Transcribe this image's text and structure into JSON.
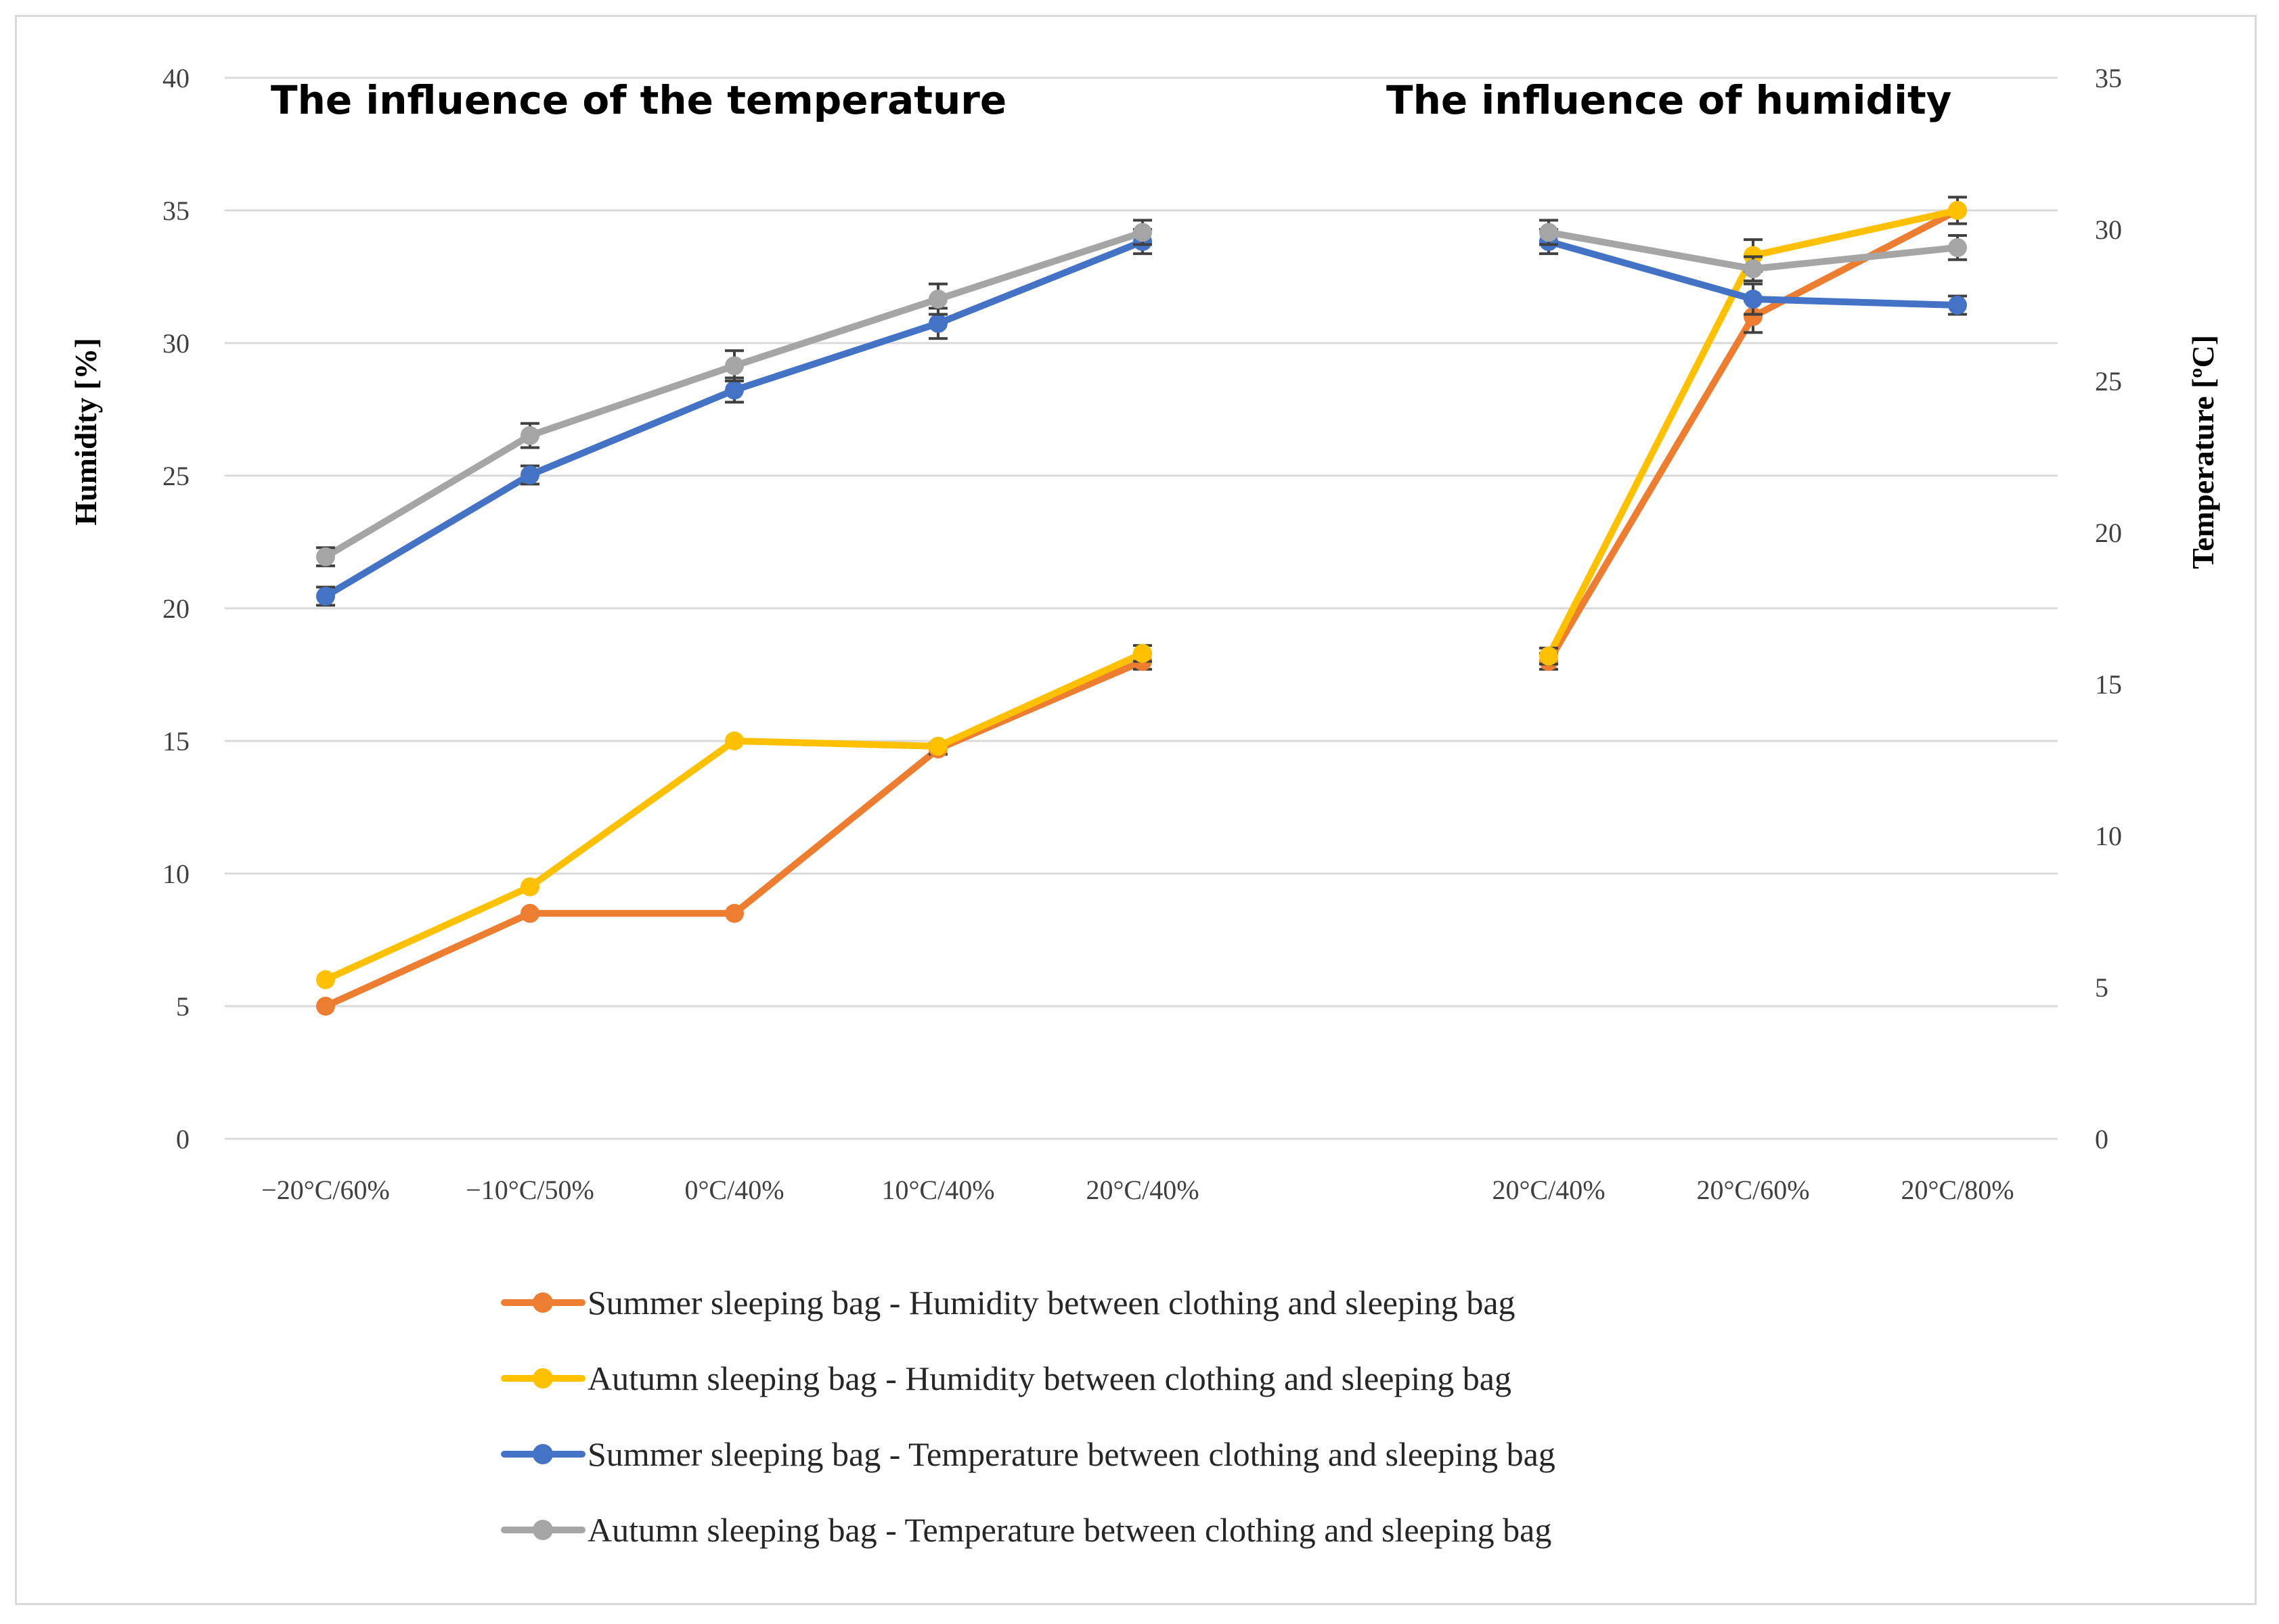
{
  "chart_data": {
    "type": "line",
    "panel_titles": [
      "The influence of the temperature",
      "The influence of humidity"
    ],
    "categories": [
      "−20°C/60%",
      "−10°C/50%",
      "0°C/40%",
      "10°C/40%",
      "20°C/40%",
      "20°C/40%",
      "20°C/60%",
      "20°C/80%"
    ],
    "category_groups": [
      [
        0,
        1,
        2,
        3,
        4
      ],
      [
        5,
        6,
        7
      ]
    ],
    "y_left": {
      "label": "Humidity [%]",
      "ylim": [
        0,
        40
      ],
      "ticks": [
        0,
        5,
        10,
        15,
        20,
        25,
        30,
        35,
        40
      ]
    },
    "y_right": {
      "label": "Temperature [ºC]",
      "ylim": [
        0,
        35
      ],
      "ticks": [
        0,
        5,
        10,
        15,
        20,
        25,
        30,
        35
      ]
    },
    "grid": true,
    "legend_position": "bottom",
    "series": [
      {
        "name": "Summer sleeping bag -  Humidity between clothing and sleeping bag",
        "axis": "left",
        "color": "#ED7D31",
        "values": [
          5.0,
          8.5,
          8.5,
          14.7,
          18.0,
          18.0,
          31.0,
          35.0
        ],
        "errors": [
          0,
          0,
          0,
          0.2,
          0.3,
          0.3,
          0.6,
          0
        ]
      },
      {
        "name": "Autumn sleeping bag - Humidity between clothing and sleeping bag",
        "axis": "left",
        "color": "#FFC000",
        "values": [
          6.0,
          9.5,
          15.0,
          14.8,
          18.3,
          18.2,
          33.3,
          35.0
        ],
        "errors": [
          0,
          0,
          0,
          0,
          0.3,
          0.3,
          0.6,
          0.5
        ]
      },
      {
        "name": "Summer sleeping bag - Temperature between clothing and sleeping bag",
        "axis": "right",
        "color": "#4472C4",
        "values": [
          17.9,
          21.9,
          24.7,
          26.9,
          29.6,
          29.6,
          27.7,
          27.5
        ],
        "errors": [
          0.3,
          0.3,
          0.4,
          0.5,
          0.4,
          0.4,
          0.5,
          0.3
        ]
      },
      {
        "name": "Autumn sleeping bag - Temperature between clothing and sleeping bag",
        "axis": "right",
        "color": "#A5A5A5",
        "values": [
          19.2,
          23.2,
          25.5,
          27.7,
          29.9,
          29.9,
          28.7,
          29.4
        ],
        "errors": [
          0.3,
          0.4,
          0.5,
          0.5,
          0.4,
          0.4,
          0.4,
          0.4
        ]
      }
    ]
  }
}
